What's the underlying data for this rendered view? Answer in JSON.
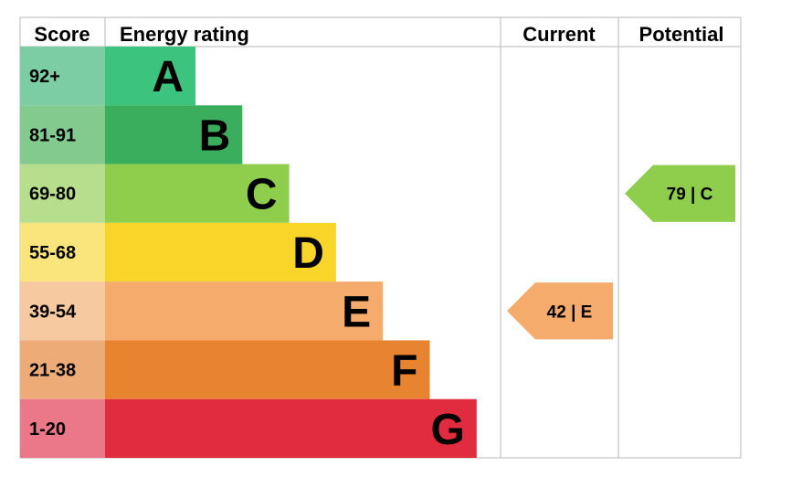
{
  "headers": {
    "score": "Score",
    "energy_rating": "Energy rating",
    "current": "Current",
    "potential": "Potential"
  },
  "chart_data": {
    "type": "bar",
    "bands": [
      {
        "letter": "A",
        "score_range": "92+",
        "min": 92,
        "max": 100,
        "color": "#3CC47E",
        "score_color": "#7CCCA4"
      },
      {
        "letter": "B",
        "score_range": "81-91",
        "min": 81,
        "max": 91,
        "color": "#3AAE5C",
        "score_color": "#83CA8F"
      },
      {
        "letter": "C",
        "score_range": "69-80",
        "min": 69,
        "max": 80,
        "color": "#8FCE4C",
        "score_color": "#B6DE8C"
      },
      {
        "letter": "D",
        "score_range": "55-68",
        "min": 55,
        "max": 68,
        "color": "#F9D52A",
        "score_color": "#F9E57C"
      },
      {
        "letter": "E",
        "score_range": "39-54",
        "min": 39,
        "max": 54,
        "color": "#F4AB6B",
        "score_color": "#F6C9A0"
      },
      {
        "letter": "F",
        "score_range": "21-38",
        "min": 21,
        "max": 38,
        "color": "#E8832F",
        "score_color": "#EDAB77"
      },
      {
        "letter": "G",
        "score_range": "1-20",
        "min": 1,
        "max": 20,
        "color": "#E12B3E",
        "score_color": "#EA7888"
      }
    ],
    "current": {
      "value": 42,
      "band": "E",
      "label": "42 | E",
      "color": "#F4AB6B"
    },
    "potential": {
      "value": 79,
      "band": "C",
      "label": "79 | C",
      "color": "#8FCE4C"
    }
  }
}
